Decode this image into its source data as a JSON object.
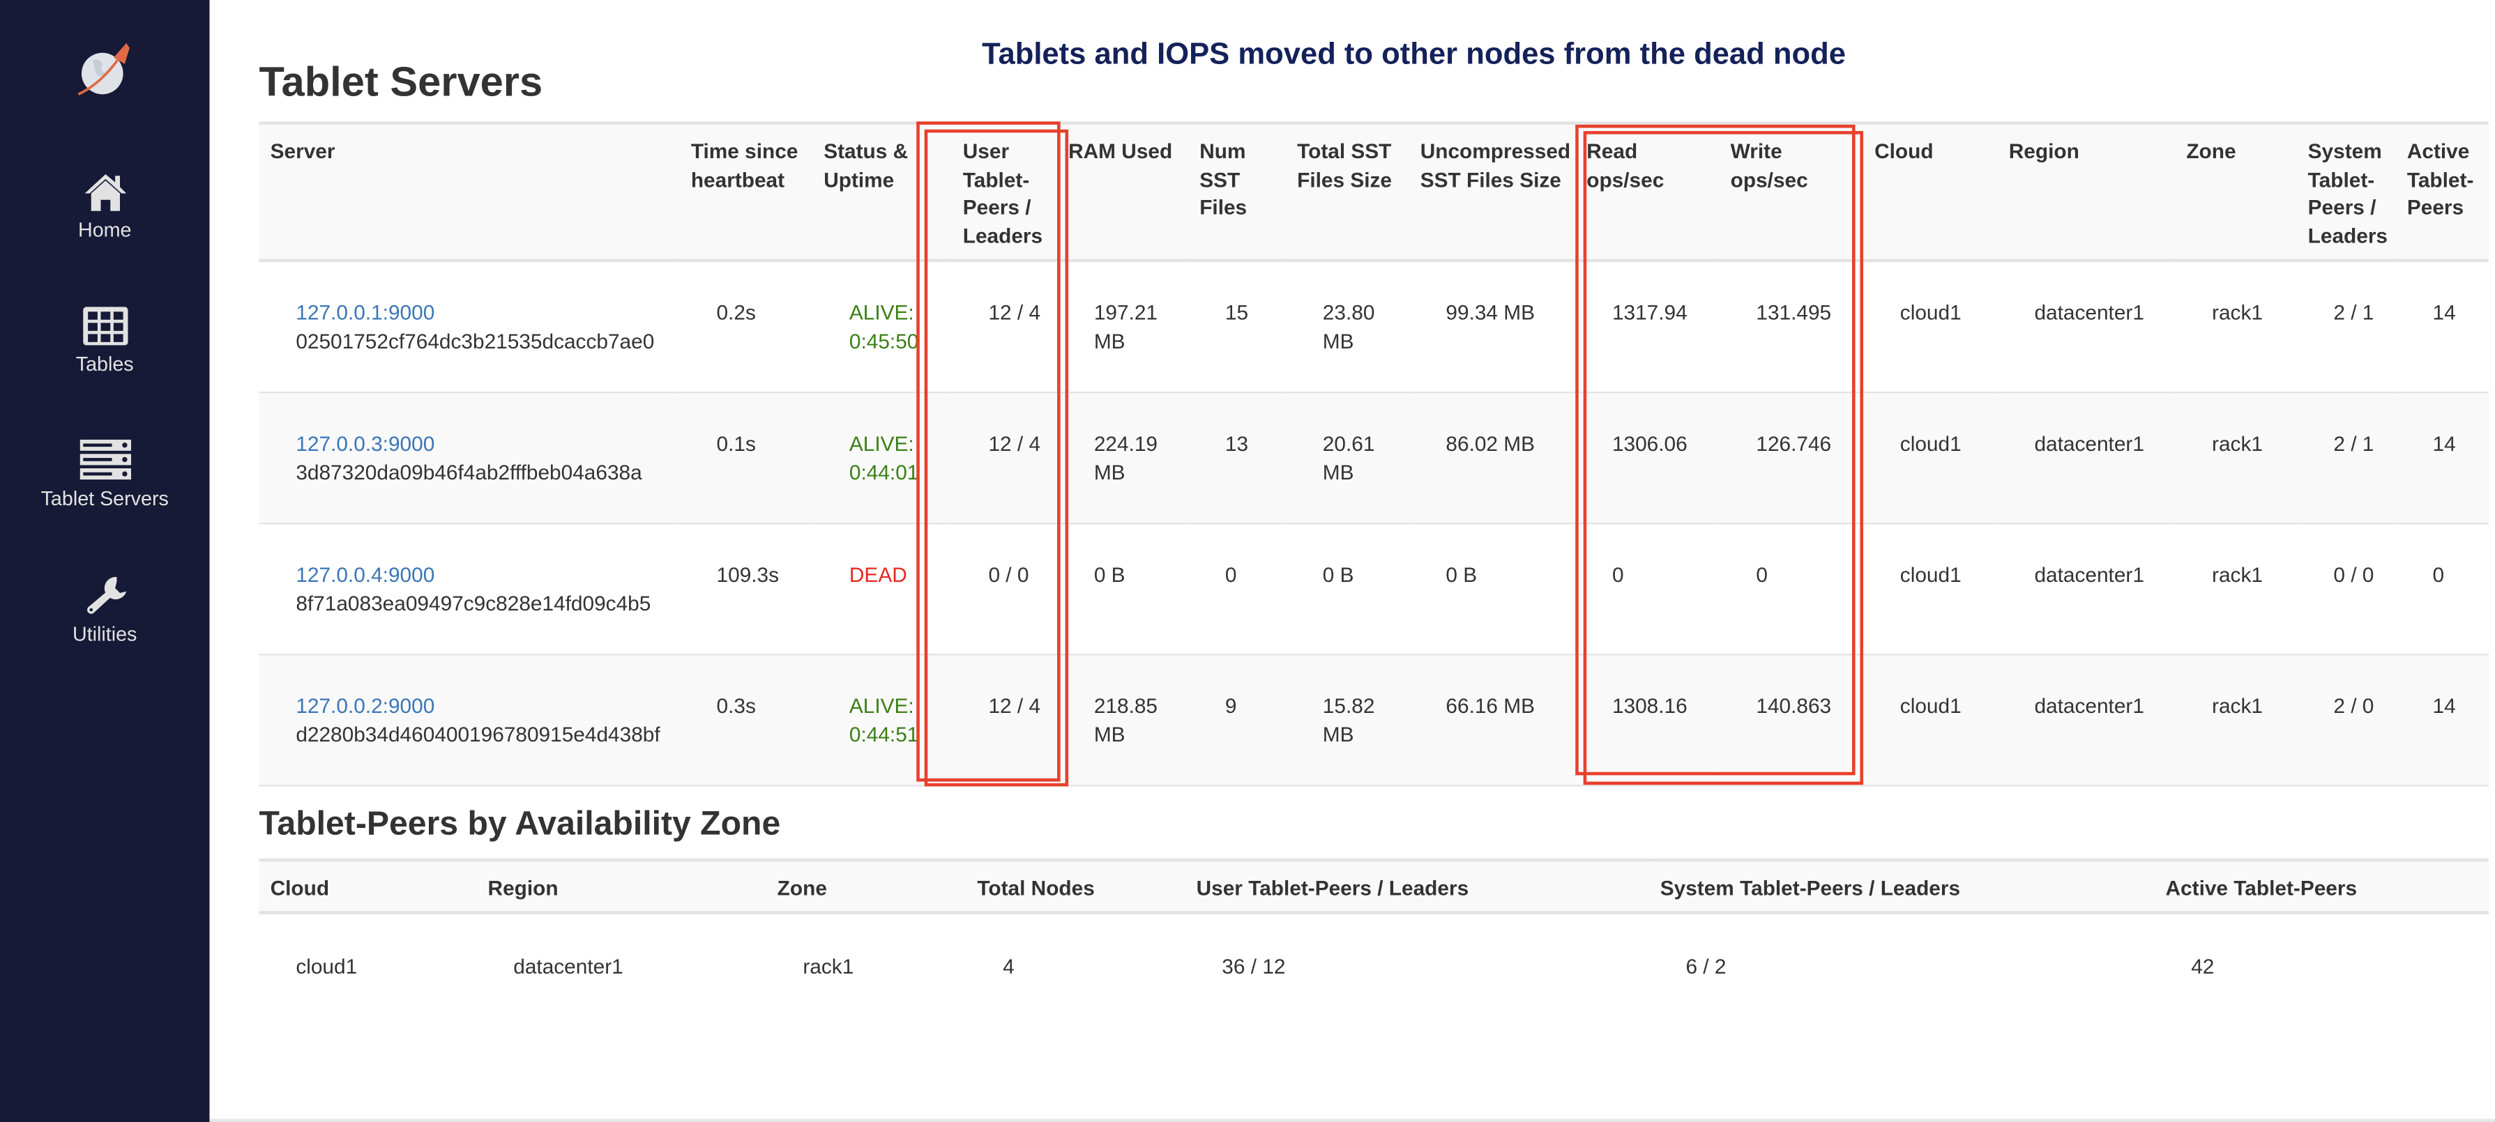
{
  "sidebar": {
    "logo": "yugabyte-logo",
    "items": [
      {
        "label": "Home",
        "icon": "home-icon"
      },
      {
        "label": "Tables",
        "icon": "table-grid-icon"
      },
      {
        "label": "Tablet Servers",
        "icon": "server-stack-icon"
      },
      {
        "label": "Utilities",
        "icon": "wrench-icon"
      }
    ]
  },
  "page_title": "Tablet Servers",
  "annotation": "Tablets and IOPS moved to other nodes from the dead node",
  "colors": {
    "sidebar_bg": "#161a36",
    "link": "#3a76b8",
    "alive": "#3b7f16",
    "dead": "#e52a22",
    "highlight_box": "#e8412c",
    "annotation": "#14215a"
  },
  "servers_table": {
    "headers": [
      "Server",
      "Time since heartbeat",
      "Status & Uptime",
      "User Tablet-Peers / Leaders",
      "RAM Used",
      "Num SST Files",
      "Total SST Files Size",
      "Uncompressed SST Files Size",
      "Read ops/sec",
      "Write ops/sec",
      "Cloud",
      "Region",
      "Zone",
      "System Tablet-Peers / Leaders",
      "Active Tablet-Peers"
    ],
    "rows": [
      {
        "addr": "127.0.0.1:9000",
        "uuid": "02501752cf764dc3b21535dcaccb7ae0",
        "heartbeat": "0.2s",
        "status": "ALIVE:",
        "uptime": "0:45:50",
        "user_peers": "12 / 4",
        "ram": "197.21 MB",
        "num_sst": "15",
        "total_sst": "23.80 MB",
        "uncomp_sst": "99.34 MB",
        "read_ops": "1317.94",
        "write_ops": "131.495",
        "cloud": "cloud1",
        "region": "datacenter1",
        "zone": "rack1",
        "sys_peers": "2 / 1",
        "active_peers": "14"
      },
      {
        "addr": "127.0.0.3:9000",
        "uuid": "3d87320da09b46f4ab2fffbeb04a638a",
        "heartbeat": "0.1s",
        "status": "ALIVE:",
        "uptime": "0:44:01",
        "user_peers": "12 / 4",
        "ram": "224.19 MB",
        "num_sst": "13",
        "total_sst": "20.61 MB",
        "uncomp_sst": "86.02 MB",
        "read_ops": "1306.06",
        "write_ops": "126.746",
        "cloud": "cloud1",
        "region": "datacenter1",
        "zone": "rack1",
        "sys_peers": "2 / 1",
        "active_peers": "14"
      },
      {
        "addr": "127.0.0.4:9000",
        "uuid": "8f71a083ea09497c9c828e14fd09c4b5",
        "heartbeat": "109.3s",
        "status": "DEAD",
        "uptime": "",
        "user_peers": "0 / 0",
        "ram": "0 B",
        "num_sst": "0",
        "total_sst": "0 B",
        "uncomp_sst": "0 B",
        "read_ops": "0",
        "write_ops": "0",
        "cloud": "cloud1",
        "region": "datacenter1",
        "zone": "rack1",
        "sys_peers": "0 / 0",
        "active_peers": "0"
      },
      {
        "addr": "127.0.0.2:9000",
        "uuid": "d2280b34d460400196780915e4d438bf",
        "heartbeat": "0.3s",
        "status": "ALIVE:",
        "uptime": "0:44:51",
        "user_peers": "12 / 4",
        "ram": "218.85 MB",
        "num_sst": "9",
        "total_sst": "15.82 MB",
        "uncomp_sst": "66.16 MB",
        "read_ops": "1308.16",
        "write_ops": "140.863",
        "cloud": "cloud1",
        "region": "datacenter1",
        "zone": "rack1",
        "sys_peers": "2 / 0",
        "active_peers": "14"
      }
    ]
  },
  "az_section": {
    "title": "Tablet-Peers by Availability Zone",
    "headers": [
      "Cloud",
      "Region",
      "Zone",
      "Total Nodes",
      "User Tablet-Peers / Leaders",
      "System Tablet-Peers / Leaders",
      "Active Tablet-Peers"
    ],
    "rows": [
      [
        "cloud1",
        "datacenter1",
        "rack1",
        "4",
        "36 / 12",
        "6 / 2",
        "42"
      ]
    ]
  }
}
